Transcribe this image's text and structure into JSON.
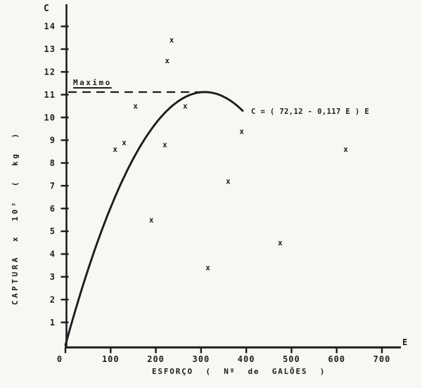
{
  "figure": {
    "paper_color": "#f8f7f4",
    "ink_color": "#1d1d1d"
  },
  "chart_data": {
    "type": "scatter",
    "title": "",
    "xlabel": "ESFORÇO ( Nº de GALÕES )",
    "ylabel": "CAPTURA x 10³ ( kg )",
    "x_axis_symbol": "E",
    "y_axis_symbol": "C",
    "xlim": [
      0,
      740
    ],
    "ylim": [
      0,
      14.6
    ],
    "x_ticks": [
      0,
      100,
      200,
      300,
      400,
      500,
      600,
      700
    ],
    "y_ticks": [
      1,
      2,
      3,
      4,
      5,
      6,
      7,
      8,
      9,
      10,
      11,
      12,
      13,
      14
    ],
    "grid": false,
    "marker": "x",
    "points": [
      {
        "x": 110,
        "y": 8.6
      },
      {
        "x": 130,
        "y": 8.9
      },
      {
        "x": 155,
        "y": 10.5
      },
      {
        "x": 190,
        "y": 5.5
      },
      {
        "x": 220,
        "y": 8.8
      },
      {
        "x": 225,
        "y": 12.5
      },
      {
        "x": 235,
        "y": 13.4
      },
      {
        "x": 265,
        "y": 10.5
      },
      {
        "x": 315,
        "y": 3.4
      },
      {
        "x": 360,
        "y": 7.2
      },
      {
        "x": 390,
        "y": 9.4
      },
      {
        "x": 475,
        "y": 4.5
      },
      {
        "x": 620,
        "y": 8.6
      }
    ],
    "curve": {
      "label": "C = ( 72,12 - 0,117 E ) E",
      "a": 72.12,
      "b": 0.117,
      "domain": [
        0,
        392
      ],
      "note": "C plotted as x10³ kg"
    },
    "max_line": {
      "label": "Maximo",
      "c_value": 11.11,
      "e_at_max": 308,
      "style": "dashed"
    }
  }
}
